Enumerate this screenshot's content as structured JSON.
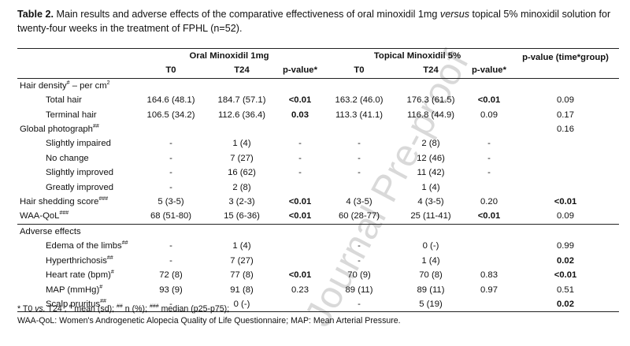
{
  "caption": {
    "label": "Table 2.",
    "text_part1": " Main results and adverse effects of the comparative effectiveness of oral minoxidil 1mg ",
    "text_italic": "versus",
    "text_part2": " topical 5% minoxidil solution for twenty-four weeks in the treatment of FPHL (n=52)."
  },
  "watermark": "Journal Pre-proof",
  "header": {
    "group_oral": "Oral Minoxidil 1mg",
    "group_topical": "Topical Minoxidil 5%",
    "interaction": "p-value (time*group)",
    "t0": "T0",
    "t24": "T24",
    "pvalue": "p-value*"
  },
  "rows": [
    {
      "label": "Hair density",
      "sup": "#",
      "label_suffix": " – per cm",
      "sup2": "2",
      "indent": false,
      "cells": [
        "",
        "",
        "",
        "",
        "",
        "",
        ""
      ],
      "bold": []
    },
    {
      "label": "Total hair",
      "indent": true,
      "cells": [
        "164.6 (48.1)",
        "184.7 (57.1)",
        "<0.01",
        "163.2 (46.0)",
        "176.3 (61.5)",
        "<0.01",
        "0.09"
      ],
      "bold": [
        2,
        5
      ]
    },
    {
      "label": "Terminal hair",
      "indent": true,
      "cells": [
        "106.5 (34.2)",
        "112.6 (36.4)",
        "0.03",
        "113.3 (41.1)",
        "116.8 (44.9)",
        "0.09",
        "0.17"
      ],
      "bold": [
        2
      ]
    },
    {
      "label": "Global photograph",
      "sup": "##",
      "indent": false,
      "cells": [
        "",
        "",
        "",
        "",
        "",
        "",
        "0.16"
      ],
      "bold": []
    },
    {
      "label": "Slightly impaired",
      "indent": true,
      "cells": [
        "-",
        "1 (4)",
        "-",
        "-",
        "2 (8)",
        "-",
        ""
      ],
      "bold": []
    },
    {
      "label": "No change",
      "indent": true,
      "cells": [
        "-",
        "7 (27)",
        "-",
        "-",
        "12 (46)",
        "-",
        ""
      ],
      "bold": []
    },
    {
      "label": "Slightly improved",
      "indent": true,
      "cells": [
        "-",
        "16 (62)",
        "-",
        "-",
        "11 (42)",
        "-",
        ""
      ],
      "bold": []
    },
    {
      "label": "Greatly improved",
      "indent": true,
      "cells": [
        "-",
        "2 (8)",
        "",
        "",
        "1 (4)",
        "",
        ""
      ],
      "bold": []
    },
    {
      "label": "Hair shedding score",
      "sup": "###",
      "indent": false,
      "cells": [
        "5 (3-5)",
        "3 (2-3)",
        "<0.01",
        "4 (3-5)",
        "4 (3-5)",
        "0.20",
        "<0.01"
      ],
      "bold": [
        2,
        6
      ]
    },
    {
      "label": "WAA-QoL",
      "sup": "###",
      "indent": false,
      "cells": [
        "68 (51-80)",
        "15 (6-36)",
        "<0.01",
        "60 (28-77)",
        "25 (11-41)",
        "<0.01",
        "0.09"
      ],
      "bold": [
        2,
        5
      ],
      "line_below": true
    },
    {
      "label": "Adverse effects",
      "indent": false,
      "cells": [
        "",
        "",
        "",
        "",
        "",
        "",
        ""
      ],
      "bold": []
    },
    {
      "label": "Edema of the limbs",
      "sup": "##",
      "indent": true,
      "cells": [
        "-",
        "1 (4)",
        "",
        "-",
        "0 (-)",
        "",
        "0.99"
      ],
      "bold": []
    },
    {
      "label": "Hyperthrichosis",
      "sup": "##",
      "indent": true,
      "cells": [
        "-",
        "7 (27)",
        "",
        "-",
        "1 (4)",
        "",
        "0.02"
      ],
      "bold": [
        6
      ]
    },
    {
      "label": "Heart rate (bpm)",
      "sup": "#",
      "indent": true,
      "cells": [
        "72 (8)",
        "77 (8)",
        "<0.01",
        "70 (9)",
        "70 (8)",
        "0.83",
        "<0.01"
      ],
      "bold": [
        2,
        6
      ]
    },
    {
      "label": "MAP (mmHg)",
      "sup": "#",
      "indent": true,
      "cells": [
        "93 (9)",
        "91 (8)",
        "0.23",
        "89 (11)",
        "89 (11)",
        "0.97",
        "0.51"
      ],
      "bold": []
    },
    {
      "label": "Scalp pruritus",
      "sup": "##",
      "indent": true,
      "cells": [
        "-",
        "0 (-)",
        "",
        "-",
        "5 (19)",
        "",
        "0.02"
      ],
      "bold": [
        6
      ]
    }
  ],
  "footnotes": {
    "line1_a": "* T0 ",
    "line1_vs": "vs.",
    "line1_b": " T24 ; ",
    "sup_hash": "#",
    "line1_c": " mean (sd); ",
    "sup_hash2": "##",
    "line1_d": " n (%); ",
    "sup_hash3": "###",
    "line1_e": " median (p25-p75);",
    "line2": "WAA-QoL: Women's Androgenetic Alopecia Quality of Life Questionnaire; MAP: Mean Arterial Pressure."
  }
}
